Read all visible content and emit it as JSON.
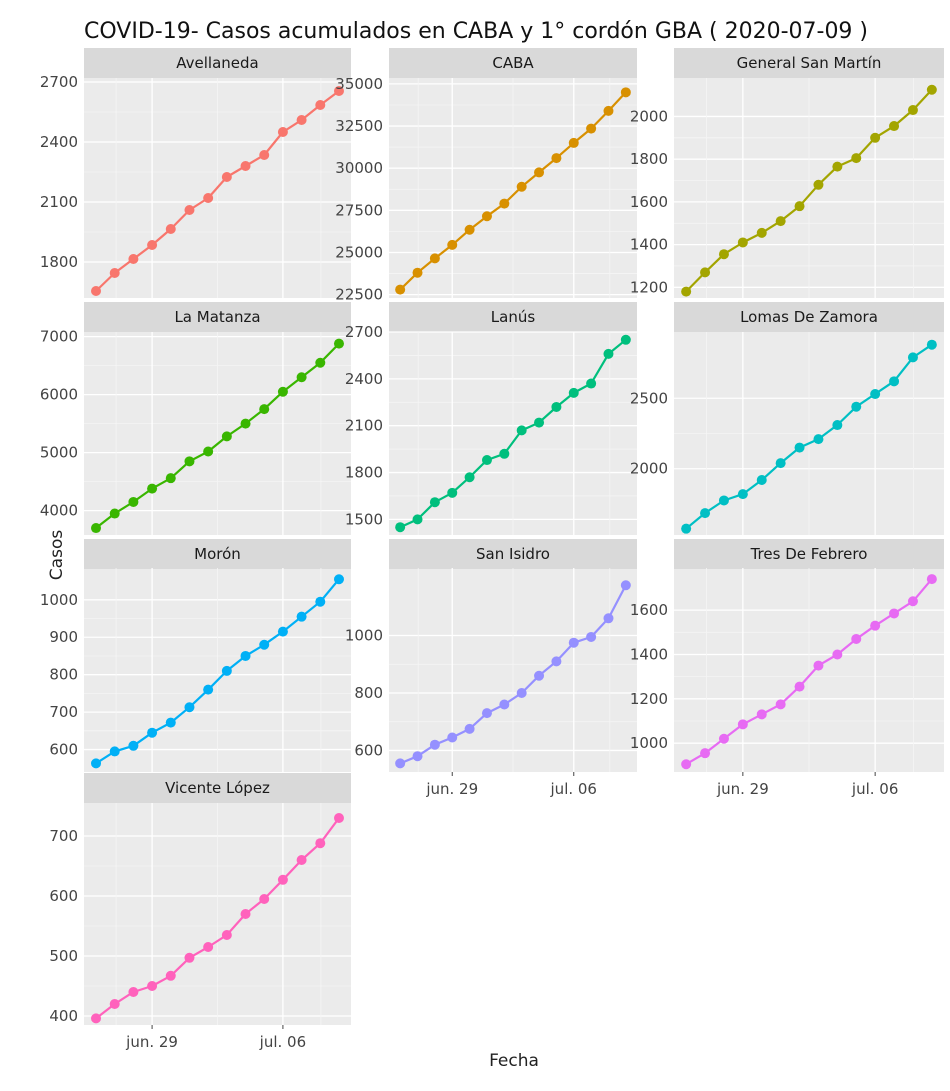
{
  "chart_data": {
    "type": "line",
    "title": "COVID-19- Casos acumulados en CABA y 1° cordón GBA ( 2020-07-09 )",
    "xlabel": "Fecha",
    "ylabel": "Casos",
    "grid": true,
    "x_tick_labels": [
      "jun. 29",
      "jul. 06"
    ],
    "x": [
      "2020-06-26",
      "2020-06-27",
      "2020-06-28",
      "2020-06-29",
      "2020-06-30",
      "2020-07-01",
      "2020-07-02",
      "2020-07-03",
      "2020-07-04",
      "2020-07-05",
      "2020-07-06",
      "2020-07-07",
      "2020-07-08",
      "2020-07-09"
    ],
    "panels": [
      {
        "name": "Avellaneda",
        "color": "#F8766D",
        "yticks": [
          1800,
          2100,
          2400,
          2700
        ],
        "ylim": [
          1620,
          2720
        ],
        "values": [
          1655,
          1745,
          1815,
          1885,
          1965,
          2060,
          2120,
          2225,
          2280,
          2335,
          2450,
          2510,
          2585,
          2655
        ]
      },
      {
        "name": "CABA",
        "color": "#D89000",
        "yticks": [
          22500,
          25000,
          27500,
          30000,
          32500,
          35000
        ],
        "ylim": [
          22300,
          35350
        ],
        "values": [
          22800,
          23800,
          24650,
          25450,
          26350,
          27150,
          27900,
          28900,
          29750,
          30600,
          31500,
          32350,
          33400,
          34500
        ]
      },
      {
        "name": "General San Martín",
        "color": "#A3A500",
        "yticks": [
          1200,
          1400,
          1600,
          1800,
          2000
        ],
        "ylim": [
          1150,
          2180
        ],
        "values": [
          1180,
          1270,
          1355,
          1410,
          1455,
          1510,
          1580,
          1680,
          1765,
          1805,
          1900,
          1955,
          2030,
          2125
        ]
      },
      {
        "name": "La Matanza",
        "color": "#39B600",
        "yticks": [
          4000,
          5000,
          6000,
          7000
        ],
        "ylim": [
          3580,
          7080
        ],
        "values": [
          3700,
          3950,
          4150,
          4380,
          4560,
          4850,
          5020,
          5280,
          5500,
          5750,
          6050,
          6300,
          6550,
          6880
        ]
      },
      {
        "name": "Lanús",
        "color": "#00BF7D",
        "yticks": [
          1500,
          1800,
          2100,
          2400,
          2700
        ],
        "ylim": [
          1400,
          2700
        ],
        "values": [
          1450,
          1500,
          1610,
          1670,
          1770,
          1880,
          1920,
          2070,
          2120,
          2220,
          2310,
          2370,
          2560,
          2650
        ]
      },
      {
        "name": "Lomas De Zamora",
        "color": "#00BFC4",
        "yticks": [
          2000,
          2500
        ],
        "ylim": [
          1530,
          2970
        ],
        "values": [
          1575,
          1685,
          1775,
          1820,
          1920,
          2040,
          2150,
          2210,
          2310,
          2440,
          2530,
          2620,
          2790,
          2880
        ]
      },
      {
        "name": "Morón",
        "color": "#00B0F6",
        "yticks": [
          600,
          700,
          800,
          900,
          1000
        ],
        "ylim": [
          540,
          1085
        ],
        "values": [
          563,
          595,
          610,
          645,
          672,
          713,
          760,
          810,
          850,
          880,
          915,
          955,
          995,
          1055
        ]
      },
      {
        "name": "San Isidro",
        "color": "#9590FF",
        "yticks": [
          600,
          800,
          1000
        ],
        "ylim": [
          525,
          1235
        ],
        "values": [
          555,
          580,
          620,
          645,
          675,
          730,
          760,
          800,
          860,
          910,
          975,
          995,
          1060,
          1175
        ]
      },
      {
        "name": "Tres De Febrero",
        "color": "#E76BF3",
        "yticks": [
          1000,
          1200,
          1400,
          1600
        ],
        "ylim": [
          870,
          1790
        ],
        "values": [
          905,
          955,
          1020,
          1085,
          1130,
          1175,
          1255,
          1350,
          1400,
          1470,
          1530,
          1585,
          1640,
          1740
        ]
      },
      {
        "name": "Vicente López",
        "color": "#FF62BC",
        "yticks": [
          400,
          500,
          600,
          700
        ],
        "ylim": [
          385,
          755
        ],
        "values": [
          396,
          420,
          440,
          450,
          467,
          497,
          515,
          535,
          570,
          595,
          627,
          660,
          688,
          730
        ]
      }
    ]
  }
}
